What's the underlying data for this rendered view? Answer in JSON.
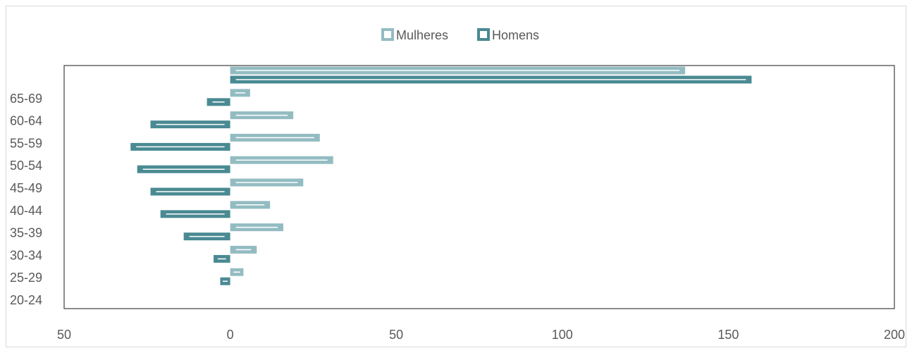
{
  "chart_data": {
    "type": "bar",
    "orientation": "horizontal",
    "legend_position": "top",
    "categories": [
      "20-24",
      "25-29",
      "30-34",
      "35-39",
      "40-44",
      "45-49",
      "50-54",
      "55-59",
      "60-64",
      "65-69",
      ""
    ],
    "series": [
      {
        "name": "Mulheres",
        "color": "#93bcc2",
        "values": [
          0,
          4,
          8,
          16,
          12,
          22,
          31,
          27,
          19,
          6,
          137
        ]
      },
      {
        "name": "Homens",
        "color": "#4a8a93",
        "values": [
          0,
          -3,
          -5,
          -14,
          -21,
          -24,
          -28,
          -30,
          -24,
          -7,
          157
        ]
      }
    ],
    "x_ticks": [
      "50",
      "0",
      "50",
      "100",
      "150",
      "200"
    ],
    "xlim": [
      -50,
      200
    ],
    "grid": false
  }
}
